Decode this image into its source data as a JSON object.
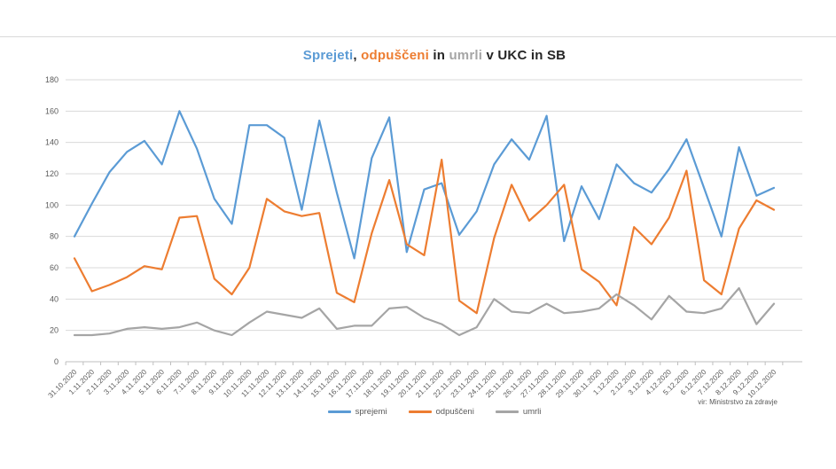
{
  "title": {
    "parts": [
      {
        "text": "Sprejeti",
        "color": "#5B9BD5"
      },
      {
        "text": ", ",
        "color": "#262626"
      },
      {
        "text": "odpuščeni",
        "color": "#ED7D31"
      },
      {
        "text": " in ",
        "color": "#262626"
      },
      {
        "text": "umrli",
        "color": "#A5A5A5"
      },
      {
        "text": " v UKC in SB",
        "color": "#262626"
      }
    ],
    "full_text": "Sprejeti, odpuščeni in umrli v UKC in SB"
  },
  "source": "vir: Ministrstvo za zdravje",
  "chart_data": {
    "type": "line",
    "title": "Sprejeti, odpuščeni in umrli v UKC in SB",
    "xlabel": "",
    "ylabel": "",
    "ylim": [
      0,
      180
    ],
    "ytick_step": 20,
    "grid": "horizontal",
    "legend_position": "bottom",
    "categories": [
      "31.10.2020",
      "1.11.2020",
      "2.11.2020",
      "3.11.2020",
      "4.11.2020",
      "5.11.2020",
      "6.11.2020",
      "7.11.2020",
      "8.11.2020",
      "9.11.2020",
      "10.11.2020",
      "11.11.2020",
      "12.11.2020",
      "13.11.2020",
      "14.11.2020",
      "15.11.2020",
      "16.11.2020",
      "17.11.2020",
      "18.11.2020",
      "19.11.2020",
      "20.11.2020",
      "21.11.2020",
      "22.11.2020",
      "23.11.2020",
      "24.11.2020",
      "25.11.2020",
      "26.11.2020",
      "27.11.2020",
      "28.11.2020",
      "29.11.2020",
      "30.11.2020",
      "1.12.2020",
      "2.12.2020",
      "3.12.2020",
      "4.12.2020",
      "5.12.2020",
      "6.12.2020",
      "7.12.2020",
      "8.12.2020",
      "9.12.2020",
      "10.12.2020"
    ],
    "series": [
      {
        "name": "sprejemi",
        "color": "#5B9BD5",
        "values": [
          80,
          101,
          121,
          134,
          141,
          126,
          160,
          136,
          104,
          88,
          151,
          151,
          143,
          97,
          154,
          108,
          66,
          130,
          156,
          70,
          110,
          114,
          81,
          96,
          126,
          142,
          129,
          157,
          77,
          112,
          91,
          126,
          114,
          108,
          123,
          142,
          111,
          80,
          137,
          106,
          111
        ]
      },
      {
        "name": "odpuščeni",
        "color": "#ED7D31",
        "values": [
          66,
          45,
          49,
          54,
          61,
          59,
          92,
          93,
          53,
          43,
          60,
          104,
          96,
          93,
          95,
          44,
          38,
          82,
          116,
          75,
          68,
          129,
          39,
          31,
          79,
          113,
          90,
          100,
          113,
          59,
          51,
          36,
          86,
          75,
          92,
          122,
          52,
          43,
          85,
          103,
          97
        ]
      },
      {
        "name": "umrli",
        "color": "#A5A5A5",
        "values": [
          17,
          17,
          18,
          21,
          22,
          21,
          22,
          25,
          20,
          17,
          25,
          32,
          30,
          28,
          34,
          21,
          23,
          23,
          34,
          35,
          28,
          24,
          17,
          22,
          40,
          32,
          31,
          37,
          31,
          32,
          34,
          43,
          36,
          27,
          42,
          32,
          31,
          34,
          47,
          24,
          37
        ]
      }
    ]
  }
}
